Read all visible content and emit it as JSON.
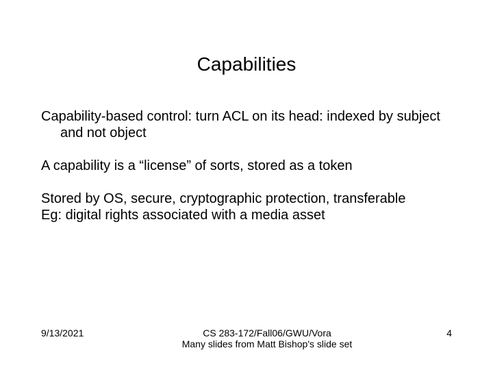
{
  "slide": {
    "title": "Capabilities",
    "title_fontsize": 28,
    "body_fontsize": 20,
    "footer_fontsize": 14,
    "background_color": "#ffffff",
    "text_color": "#000000",
    "paragraphs": [
      "Capability-based control: turn ACL on its head: indexed by subject and not object",
      "A capability is a “license” of sorts, stored as a token",
      "Stored by OS, secure, cryptographic protection, transferable",
      "Eg: digital rights associated with a media asset"
    ],
    "footer": {
      "date": "9/13/2021",
      "center_line1": "CS 283-172/Fall06/GWU/Vora",
      "center_line2": "Many slides from Matt Bishop's slide set",
      "page_number": "4"
    }
  }
}
